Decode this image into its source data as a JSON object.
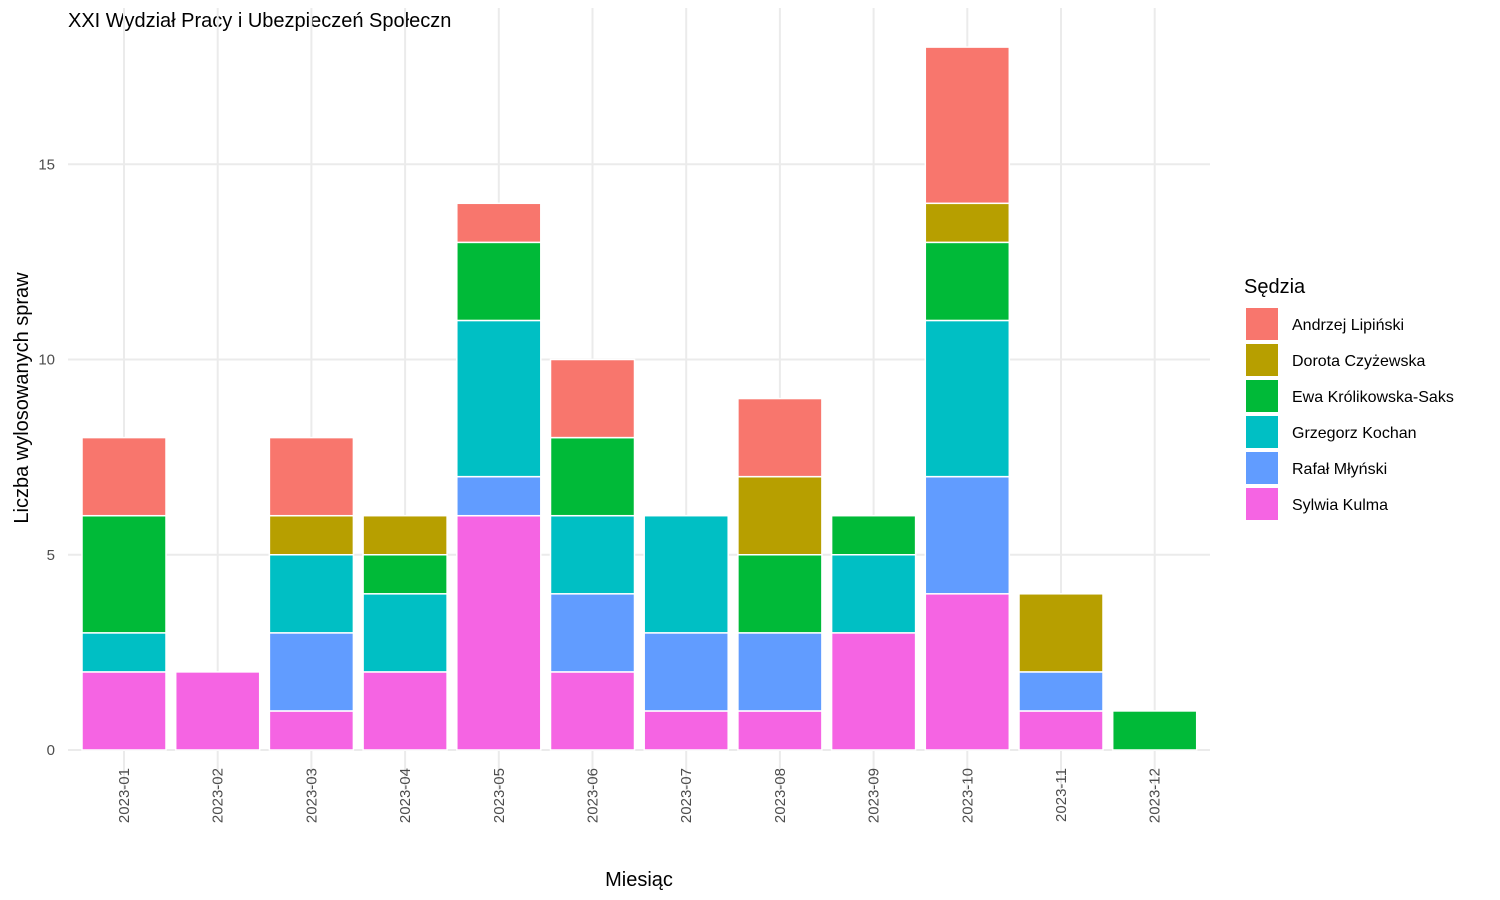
{
  "chart_data": {
    "type": "bar",
    "stacked": true,
    "title": "XXI Wydział Pracy i Ubezpieczeń Społeczn",
    "xlabel": "Miesiąc",
    "ylabel": "Liczba wylosowanych spraw",
    "ylim": [
      0,
      18.5
    ],
    "y_ticks": [
      0,
      5,
      10,
      15
    ],
    "grid": true,
    "legend": {
      "title": "Sędzia",
      "position": "right"
    },
    "categories": [
      "2023-01",
      "2023-02",
      "2023-03",
      "2023-04",
      "2023-05",
      "2023-06",
      "2023-07",
      "2023-08",
      "2023-09",
      "2023-10",
      "2023-11",
      "2023-12"
    ],
    "series": [
      {
        "name": "Sylwia Kulma",
        "color": "#F564E3",
        "values": [
          2,
          2,
          1,
          2,
          6,
          2,
          1,
          1,
          3,
          4,
          1,
          0
        ]
      },
      {
        "name": "Rafał Młyński",
        "color": "#619CFF",
        "values": [
          0,
          0,
          2,
          0,
          1,
          2,
          2,
          2,
          0,
          3,
          1,
          0
        ]
      },
      {
        "name": "Grzegorz Kochan",
        "color": "#00BFC4",
        "values": [
          1,
          0,
          2,
          2,
          4,
          2,
          3,
          0,
          2,
          4,
          0,
          0
        ]
      },
      {
        "name": "Ewa Królikowska-Saks",
        "color": "#00BA38",
        "values": [
          3,
          0,
          0,
          1,
          2,
          2,
          0,
          2,
          1,
          2,
          0,
          1
        ]
      },
      {
        "name": "Dorota Czyżewska",
        "color": "#B79F00",
        "values": [
          0,
          0,
          1,
          1,
          0,
          0,
          0,
          2,
          0,
          1,
          2,
          0
        ]
      },
      {
        "name": "Andrzej Lipiński",
        "color": "#F8766D",
        "values": [
          2,
          0,
          2,
          0,
          1,
          2,
          0,
          2,
          0,
          4,
          0,
          0
        ]
      }
    ],
    "legend_order": [
      "Andrzej Lipiński",
      "Dorota Czyżewska",
      "Ewa Królikowska-Saks",
      "Grzegorz Kochan",
      "Rafał Młyński",
      "Sylwia Kulma"
    ]
  }
}
